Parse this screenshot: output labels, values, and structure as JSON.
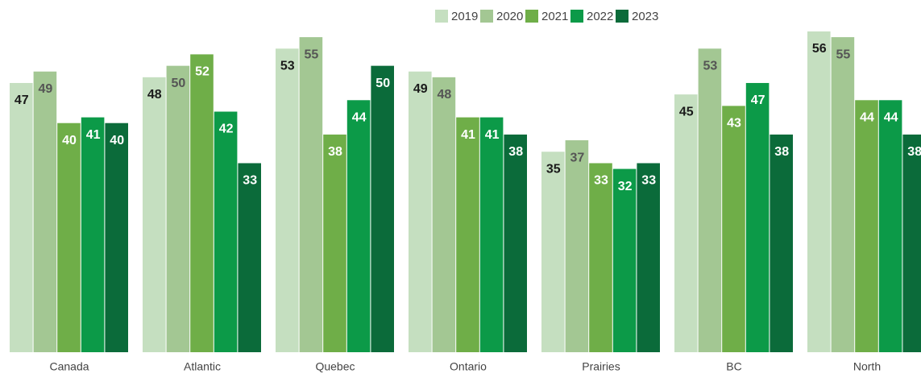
{
  "chart_data": {
    "type": "bar",
    "categories": [
      "Canada",
      "Atlantic",
      "Quebec",
      "Ontario",
      "Prairies",
      "BC",
      "North"
    ],
    "series": [
      {
        "name": "2019",
        "color": "#c5dfc0",
        "values": [
          47,
          48,
          53,
          49,
          35,
          45,
          56
        ]
      },
      {
        "name": "2020",
        "color": "#a3c793",
        "values": [
          49,
          50,
          55,
          48,
          37,
          53,
          55
        ]
      },
      {
        "name": "2021",
        "color": "#6fae48",
        "values": [
          40,
          52,
          38,
          41,
          33,
          43,
          44
        ]
      },
      {
        "name": "2022",
        "color": "#0c9a48",
        "values": [
          41,
          42,
          44,
          41,
          32,
          47,
          44
        ]
      },
      {
        "name": "2023",
        "color": "#0b6b3a",
        "values": [
          40,
          33,
          50,
          38,
          33,
          38,
          38
        ]
      }
    ],
    "legend": "top"
  }
}
